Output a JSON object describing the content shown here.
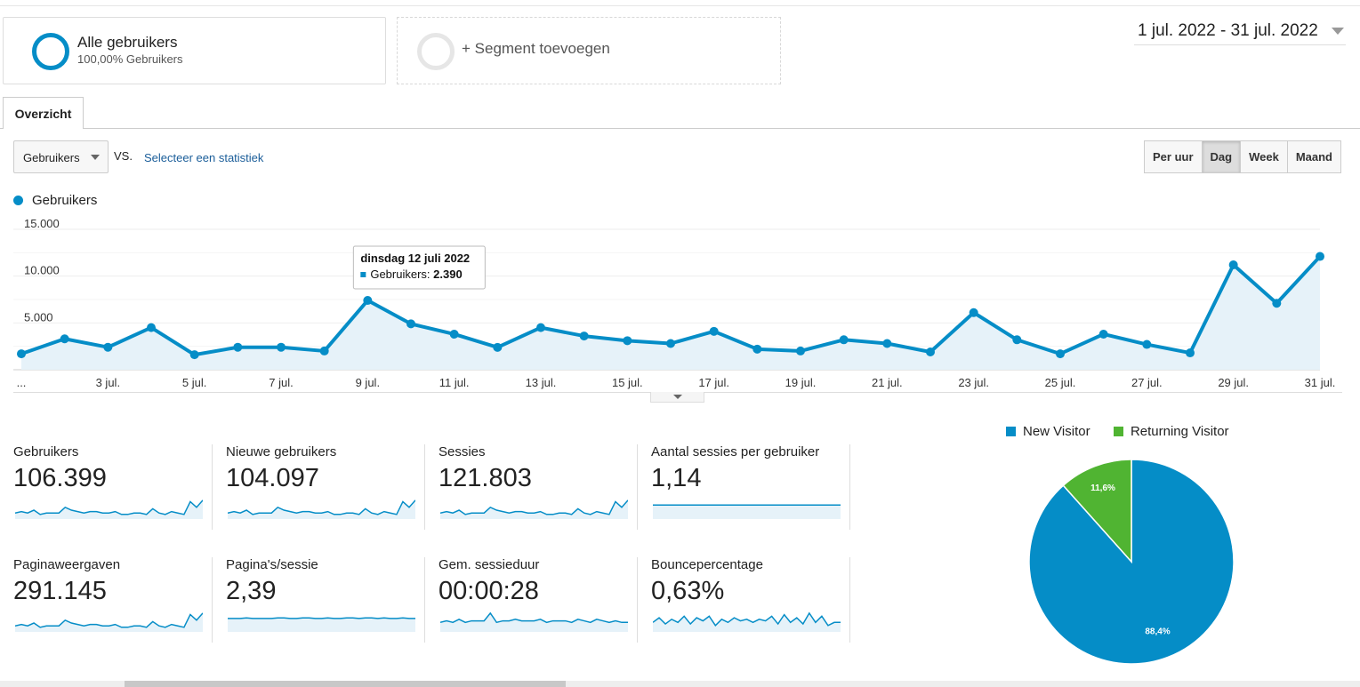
{
  "segments": {
    "active_title": "Alle gebruikers",
    "active_subtitle": "100,00% Gebruikers",
    "add_label": "+ Segment toevoegen"
  },
  "date_range": "1 jul. 2022 - 31 jul. 2022",
  "tabs": {
    "overview": "Overzicht"
  },
  "controls": {
    "metric": "Gebruikers",
    "vs": "VS.",
    "select_stat": "Selecteer een statistiek",
    "granularity": [
      "Per uur",
      "Dag",
      "Week",
      "Maand"
    ],
    "active_granularity": "Dag"
  },
  "colors": {
    "primary": "#058dc7",
    "secondary": "#50b432",
    "fill": "#e6f2f9"
  },
  "chart_data": [
    {
      "type": "area",
      "series": [
        {
          "name": "Gebruikers",
          "x": [
            "1 jul.",
            "2 jul.",
            "3 jul.",
            "4 jul.",
            "5 jul.",
            "6 jul.",
            "7 jul.",
            "8 jul.",
            "9 jul.",
            "10 jul.",
            "11 jul.",
            "12 jul.",
            "13 jul.",
            "14 jul.",
            "15 jul.",
            "16 jul.",
            "17 jul.",
            "18 jul.",
            "19 jul.",
            "20 jul.",
            "21 jul.",
            "22 jul.",
            "23 jul.",
            "24 jul.",
            "25 jul.",
            "26 jul.",
            "27 jul.",
            "28 jul.",
            "29 jul.",
            "30 jul.",
            "31 jul."
          ],
          "values": [
            1700,
            3300,
            2400,
            4500,
            1600,
            2400,
            2400,
            2000,
            7400,
            4900,
            3800,
            2390,
            4500,
            3600,
            3100,
            2800,
            4100,
            2200,
            2000,
            3200,
            2800,
            1900,
            6100,
            3200,
            1700,
            3800,
            2700,
            1800,
            11200,
            7100,
            12100
          ]
        }
      ],
      "y_ticks": [
        "5.000",
        "10.000",
        "15.000"
      ],
      "x_ticks": [
        "...",
        "3 jul.",
        "5 jul.",
        "7 jul.",
        "9 jul.",
        "11 jul.",
        "13 jul.",
        "15 jul.",
        "17 jul.",
        "19 jul.",
        "21 jul.",
        "23 jul.",
        "25 jul.",
        "27 jul.",
        "29 jul.",
        "31 jul."
      ],
      "ylim": [
        0,
        15000
      ],
      "grid": true,
      "tooltip": {
        "title": "dinsdag 12 juli 2022",
        "label": "Gebruikers:",
        "value": "2.390"
      }
    },
    {
      "type": "pie",
      "categories": [
        "New Visitor",
        "Returning Visitor"
      ],
      "values": [
        88.4,
        11.6
      ],
      "labels": [
        "88,4%",
        "11,6%"
      ]
    }
  ],
  "metrics": [
    {
      "label": "Gebruikers",
      "value": "106.399",
      "spark": [
        3,
        4,
        3,
        5,
        2,
        3,
        3,
        3,
        7,
        5,
        4,
        3,
        4,
        4,
        3,
        3,
        4,
        2,
        2,
        3,
        3,
        2,
        6,
        3,
        2,
        4,
        3,
        2,
        11,
        7,
        12
      ]
    },
    {
      "label": "Nieuwe gebruikers",
      "value": "104.097",
      "spark": [
        3,
        4,
        3,
        5,
        2,
        3,
        3,
        3,
        7,
        5,
        4,
        3,
        4,
        4,
        3,
        3,
        4,
        2,
        2,
        3,
        3,
        2,
        6,
        3,
        2,
        4,
        3,
        2,
        11,
        7,
        12
      ]
    },
    {
      "label": "Sessies",
      "value": "121.803",
      "spark": [
        3,
        4,
        3,
        5,
        2,
        3,
        3,
        3,
        7,
        5,
        4,
        3,
        4,
        4,
        3,
        3,
        4,
        2,
        2,
        3,
        3,
        2,
        6,
        3,
        2,
        4,
        3,
        2,
        11,
        7,
        12
      ]
    },
    {
      "label": "Aantal sessies per gebruiker",
      "value": "1,14",
      "spark": [
        10,
        10,
        10,
        10,
        10,
        10,
        10,
        10,
        10,
        10,
        10,
        10,
        10,
        10,
        10,
        10,
        10,
        10,
        10,
        10,
        10,
        10,
        10,
        10,
        10,
        10,
        10,
        10,
        10,
        10,
        10
      ]
    },
    {
      "label": "Paginaweergaven",
      "value": "291.145",
      "spark": [
        3,
        4,
        3,
        5,
        2,
        3,
        3,
        3,
        7,
        5,
        4,
        3,
        4,
        4,
        3,
        3,
        4,
        2,
        2,
        3,
        3,
        2,
        6,
        3,
        2,
        4,
        3,
        2,
        11,
        7,
        12
      ]
    },
    {
      "label": "Pagina's/sessie",
      "value": "2,39",
      "spark": [
        20,
        20,
        20,
        21,
        20,
        20,
        20,
        20,
        21,
        21,
        20,
        20,
        21,
        21,
        20,
        20,
        21,
        20,
        20,
        21,
        21,
        20,
        21,
        21,
        20,
        21,
        20,
        20,
        21,
        20,
        20
      ]
    },
    {
      "label": "Gem. sessieduur",
      "value": "00:00:28",
      "spark": [
        5,
        6,
        5,
        7,
        5,
        6,
        6,
        6,
        11,
        5,
        6,
        6,
        7,
        6,
        6,
        6,
        7,
        5,
        6,
        6,
        6,
        5,
        7,
        6,
        5,
        7,
        6,
        5,
        6,
        5,
        5
      ]
    },
    {
      "label": "Bouncepercentage",
      "value": "0,63%",
      "spark": [
        5,
        8,
        4,
        7,
        5,
        9,
        4,
        8,
        6,
        9,
        3,
        7,
        5,
        8,
        6,
        7,
        5,
        7,
        6,
        9,
        4,
        10,
        5,
        8,
        4,
        11,
        5,
        9,
        3,
        5,
        5
      ]
    }
  ]
}
